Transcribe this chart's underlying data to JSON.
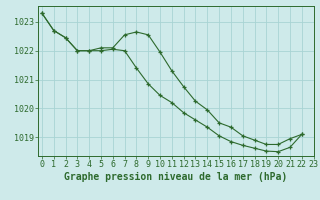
{
  "line1_x": [
    0,
    1,
    2,
    3,
    4,
    5,
    6,
    7,
    8,
    9,
    10,
    11,
    12,
    13,
    14,
    15,
    16,
    17,
    18,
    19,
    20,
    21,
    22
  ],
  "line1_y": [
    1023.3,
    1022.7,
    1022.45,
    1022.0,
    1022.0,
    1022.1,
    1022.1,
    1022.55,
    1022.65,
    1022.55,
    1021.95,
    1021.3,
    1020.75,
    1020.25,
    1019.95,
    1019.5,
    1019.35,
    1019.05,
    1018.9,
    1018.75,
    1018.75,
    1018.95,
    1019.1
  ],
  "line2_x": [
    0,
    1,
    2,
    3,
    4,
    5,
    6,
    7,
    8,
    9,
    10,
    11,
    12,
    13,
    14,
    15,
    16,
    17,
    18,
    19,
    20,
    21,
    22
  ],
  "line2_y": [
    1023.3,
    1022.7,
    1022.45,
    1022.0,
    1022.0,
    1022.0,
    1022.05,
    1022.0,
    1021.4,
    1020.85,
    1020.45,
    1020.2,
    1019.85,
    1019.6,
    1019.35,
    1019.05,
    1018.85,
    1018.72,
    1018.62,
    1018.52,
    1018.5,
    1018.65,
    1019.1
  ],
  "yticks": [
    1019,
    1020,
    1021,
    1022,
    1023
  ],
  "xticks": [
    0,
    1,
    2,
    3,
    4,
    5,
    6,
    7,
    8,
    9,
    10,
    11,
    12,
    13,
    14,
    15,
    16,
    17,
    18,
    19,
    20,
    21,
    22,
    23
  ],
  "ylim_bottom": 1018.35,
  "ylim_top": 1023.55,
  "xlim_left": -0.3,
  "xlim_right": 23.0,
  "line_color": "#2d6a2d",
  "bg_color": "#ceeaea",
  "grid_color": "#a8d4d4",
  "xlabel": "Graphe pression niveau de la mer (hPa)",
  "tick_fontsize": 6.0,
  "xlabel_fontsize": 7.0
}
